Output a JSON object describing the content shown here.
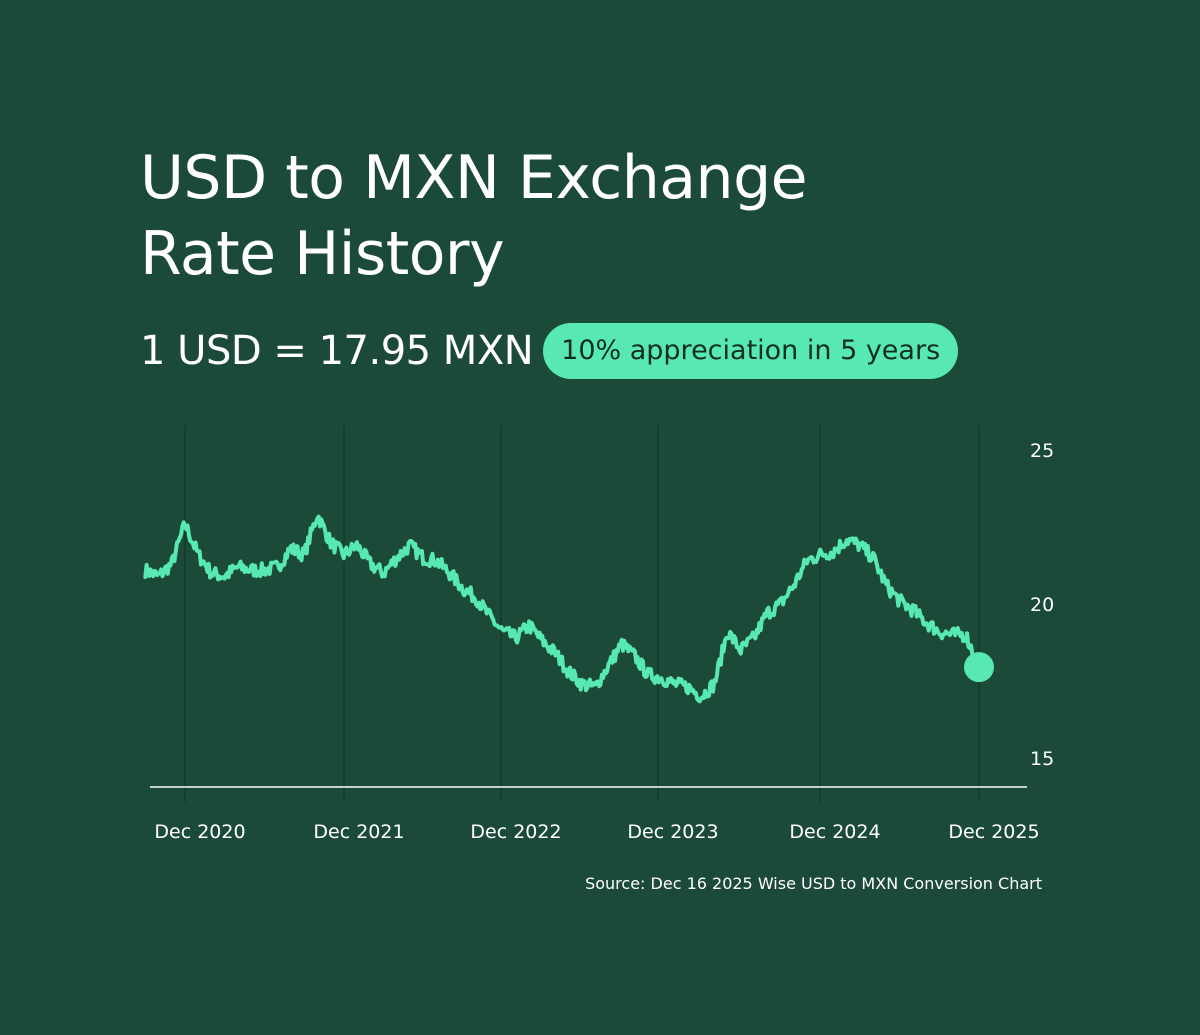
{
  "title_line1": "USD to MXN Exchange",
  "title_line2": "Rate History",
  "rate_text": "1 USD = 17.95 MXN",
  "badge_text": "10% appreciation in 5 years",
  "source_text": "Source: Dec 16 2025 Wise USD to MXN Conversion Chart",
  "colors": {
    "background": "#1c4a39",
    "line": "#57e9b1",
    "badge": "#57e9b1",
    "gridline": "#163d2f",
    "axis": "#ffffff"
  },
  "chart_data": {
    "type": "line",
    "x_ticks": [
      "Dec 2020",
      "Dec 2021",
      "Dec 2022",
      "Dec 2023",
      "Dec 2024",
      "Dec 2025"
    ],
    "y_ticks": [
      25,
      20,
      15
    ],
    "ylim": [
      14,
      25.5
    ],
    "y_axis_side": "right",
    "grid": "vertical at x ticks",
    "end_marker": true,
    "series": [
      {
        "x": [
          "2020-09",
          "2020-10",
          "2020-11",
          "2020-12",
          "2021-01",
          "2021-02",
          "2021-03",
          "2021-04",
          "2021-05",
          "2021-06",
          "2021-07",
          "2021-08",
          "2021-09",
          "2021-10",
          "2021-11",
          "2021-12",
          "2022-01",
          "2022-02",
          "2022-03",
          "2022-04",
          "2022-05",
          "2022-06",
          "2022-07",
          "2022-08",
          "2022-09",
          "2022-10",
          "2022-11",
          "2022-12",
          "2023-01",
          "2023-02",
          "2023-03",
          "2023-04",
          "2023-05",
          "2023-06",
          "2023-07",
          "2023-08",
          "2023-09",
          "2023-10",
          "2023-11",
          "2023-12",
          "2024-01",
          "2024-02",
          "2024-03",
          "2024-04",
          "2024-05",
          "2024-06",
          "2024-07",
          "2024-08",
          "2024-09",
          "2024-10",
          "2024-11",
          "2024-12",
          "2025-01",
          "2025-02",
          "2025-03",
          "2025-04",
          "2025-05",
          "2025-06",
          "2025-07",
          "2025-08",
          "2025-09",
          "2025-10",
          "2025-11",
          "2025-12"
        ],
        "y": [
          21.1,
          20.9,
          21.3,
          22.6,
          21.6,
          21.0,
          20.9,
          21.2,
          21.1,
          21.1,
          21.2,
          21.8,
          21.6,
          22.9,
          22.0,
          21.6,
          21.9,
          21.3,
          21.0,
          21.5,
          21.9,
          21.5,
          21.4,
          21.0,
          20.5,
          20.2,
          19.6,
          19.1,
          18.9,
          19.3,
          18.8,
          18.4,
          17.8,
          17.4,
          17.3,
          18.0,
          18.7,
          18.3,
          17.7,
          17.6,
          17.4,
          17.3,
          17.0,
          17.4,
          19.1,
          18.5,
          18.9,
          19.7,
          20.0,
          20.6,
          21.4,
          21.6,
          21.7,
          22.1,
          21.9,
          21.5,
          20.6,
          20.1,
          19.8,
          19.4,
          19.1,
          19.0,
          19.0,
          17.95
        ]
      }
    ]
  }
}
